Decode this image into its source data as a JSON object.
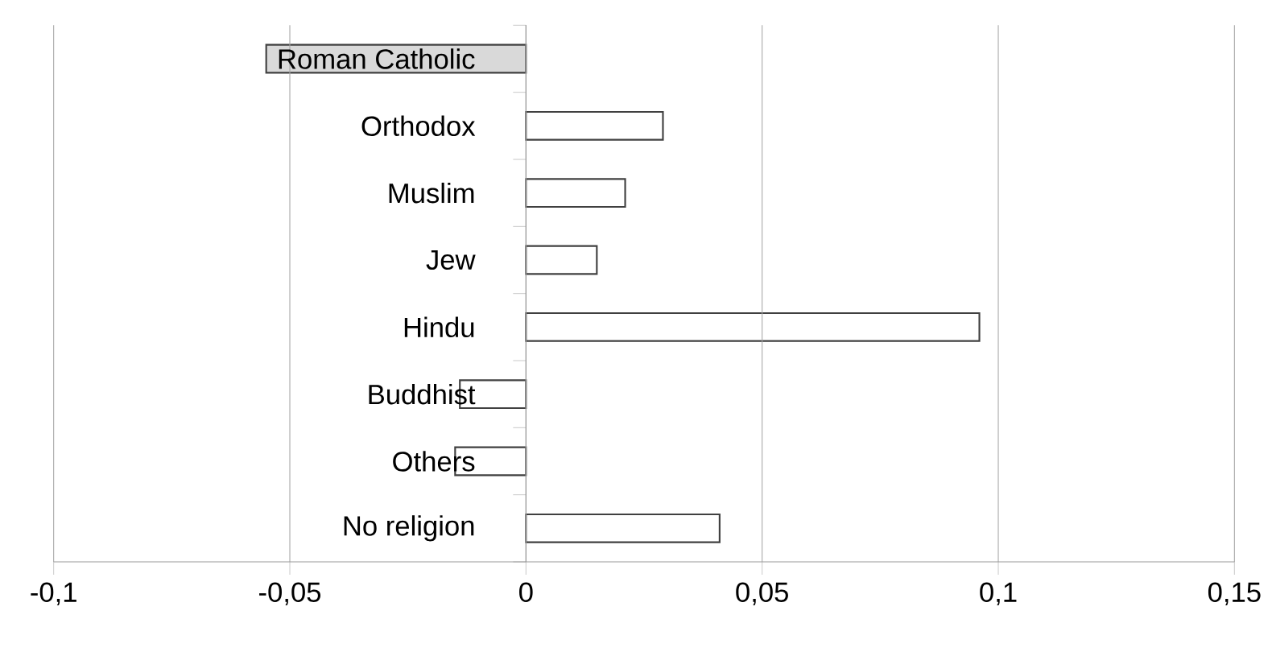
{
  "chart_data": {
    "type": "bar",
    "orientation": "horizontal",
    "categories": [
      "Roman Catholic",
      "Orthodox",
      "Muslim",
      "Jew",
      "Hindu",
      "Buddhist",
      "Others",
      "No religion"
    ],
    "values": [
      -0.055,
      0.029,
      0.021,
      0.015,
      0.096,
      -0.014,
      -0.015,
      0.041
    ],
    "colors": [
      "#d9d9d9",
      "#ffffff",
      "#ffffff",
      "#ffffff",
      "#ffffff",
      "#ffffff",
      "#ffffff",
      "#ffffff"
    ],
    "xlim": [
      -0.1,
      0.15
    ],
    "xticks": [
      {
        "value": -0.1,
        "label": "-0,1"
      },
      {
        "value": -0.05,
        "label": "-0,05"
      },
      {
        "value": 0,
        "label": "0"
      },
      {
        "value": 0.05,
        "label": "0,05"
      },
      {
        "value": 0.1,
        "label": "0,1"
      },
      {
        "value": 0.15,
        "label": "0,15"
      }
    ],
    "grid": "x"
  }
}
